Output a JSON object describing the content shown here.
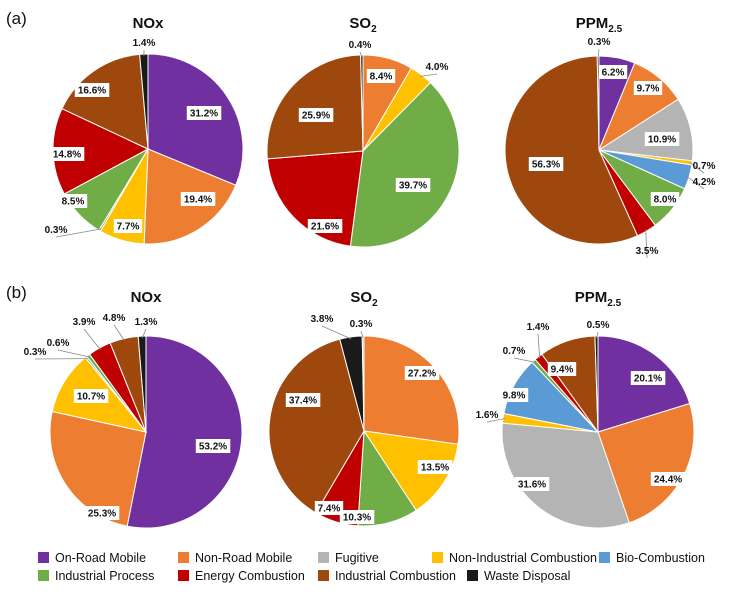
{
  "categories": [
    {
      "name": "On-Road Mobile",
      "color": "#7030A0"
    },
    {
      "name": "Non-Road Mobile",
      "color": "#ED7D31"
    },
    {
      "name": "Fugitive",
      "color": "#B4B4B4"
    },
    {
      "name": "Non-Industrial Combustion",
      "color": "#FFC000"
    },
    {
      "name": "Bio-Combustion",
      "color": "#5B9BD5"
    },
    {
      "name": "Industrial Process",
      "color": "#70AD47"
    },
    {
      "name": "Energy Combustion",
      "color": "#C00000"
    },
    {
      "name": "Industrial Combustion",
      "color": "#9E480E"
    },
    {
      "name": "Waste Disposal",
      "color": "#1A1A1A"
    }
  ],
  "chart_data": [
    {
      "type": "pie",
      "panel": "(a)",
      "title": "NOx",
      "title_base": "NOx",
      "title_sub": "",
      "slices": [
        {
          "category": "On-Road Mobile",
          "value": 31.2,
          "label": "31.2%"
        },
        {
          "category": "Non-Road Mobile",
          "value": 19.4,
          "label": "19.4%"
        },
        {
          "category": "Non-Industrial Combustion",
          "value": 7.7,
          "label": "7.7%"
        },
        {
          "category": "Industrial Process",
          "value": 0.3,
          "label": "0.3%"
        },
        {
          "category": "Industrial Process",
          "value": 8.5,
          "label": "8.5%"
        },
        {
          "category": "Energy Combustion",
          "value": 14.8,
          "label": "14.8%"
        },
        {
          "category": "Industrial Combustion",
          "value": 16.6,
          "label": "16.6%"
        },
        {
          "category": "Waste Disposal",
          "value": 1.4,
          "label": "1.4%"
        }
      ]
    },
    {
      "type": "pie",
      "panel": "(a)",
      "title": "SO2",
      "title_base": "SO",
      "title_sub": "2",
      "slices": [
        {
          "category": "Non-Road Mobile",
          "value": 8.4,
          "label": "8.4%"
        },
        {
          "category": "Non-Industrial Combustion",
          "value": 4.0,
          "label": "4.0%"
        },
        {
          "category": "Industrial Process",
          "value": 39.7,
          "label": "39.7%"
        },
        {
          "category": "Energy Combustion",
          "value": 21.6,
          "label": "21.6%"
        },
        {
          "category": "Industrial Combustion",
          "value": 25.9,
          "label": "25.9%"
        },
        {
          "category": "Waste Disposal",
          "value": 0.4,
          "label": "0.4%"
        }
      ]
    },
    {
      "type": "pie",
      "panel": "(a)",
      "title": "PPM2.5",
      "title_base": "PPM",
      "title_sub": "2.5",
      "slices": [
        {
          "category": "On-Road Mobile",
          "value": 6.2,
          "label": "6.2%"
        },
        {
          "category": "Non-Road Mobile",
          "value": 9.7,
          "label": "9.7%"
        },
        {
          "category": "Fugitive",
          "value": 10.9,
          "label": "10.9%"
        },
        {
          "category": "Non-Industrial Combustion",
          "value": 0.7,
          "label": "0.7%"
        },
        {
          "category": "Bio-Combustion",
          "value": 4.2,
          "label": "4.2%"
        },
        {
          "category": "Industrial Process",
          "value": 8.0,
          "label": "8.0%"
        },
        {
          "category": "Energy Combustion",
          "value": 3.5,
          "label": "3.5%"
        },
        {
          "category": "Industrial Combustion",
          "value": 56.3,
          "label": "56.3%"
        },
        {
          "category": "Waste Disposal",
          "value": 0.3,
          "label": "0.3%"
        }
      ]
    },
    {
      "type": "pie",
      "panel": "(b)",
      "title": "NOx",
      "title_base": "NOx",
      "title_sub": "",
      "slices": [
        {
          "category": "On-Road Mobile",
          "value": 53.2,
          "label": "53.2%"
        },
        {
          "category": "Non-Road Mobile",
          "value": 25.3,
          "label": "25.3%"
        },
        {
          "category": "Non-Industrial Combustion",
          "value": 10.7,
          "label": "10.7%"
        },
        {
          "category": "Bio-Combustion",
          "value": 0.3,
          "label": "0.3%"
        },
        {
          "category": "Industrial Process",
          "value": 0.6,
          "label": "0.6%"
        },
        {
          "category": "Energy Combustion",
          "value": 3.9,
          "label": "3.9%"
        },
        {
          "category": "Industrial Combustion",
          "value": 4.8,
          "label": "4.8%"
        },
        {
          "category": "Waste Disposal",
          "value": 1.3,
          "label": "1.3%"
        }
      ]
    },
    {
      "type": "pie",
      "panel": "(b)",
      "title": "SO2",
      "title_base": "SO",
      "title_sub": "2",
      "slices": [
        {
          "category": "Non-Road Mobile",
          "value": 27.2,
          "label": "27.2%"
        },
        {
          "category": "Non-Industrial Combustion",
          "value": 13.5,
          "label": "13.5%"
        },
        {
          "category": "Industrial Process",
          "value": 10.3,
          "label": "10.3%"
        },
        {
          "category": "Energy Combustion",
          "value": 7.4,
          "label": "7.4%"
        },
        {
          "category": "Industrial Combustion",
          "value": 37.4,
          "label": "37.4%"
        },
        {
          "category": "Waste Disposal",
          "value": 3.8,
          "label": "3.8%"
        },
        {
          "category": "Fugitive",
          "value": 0.3,
          "label": "0.3%"
        }
      ]
    },
    {
      "type": "pie",
      "panel": "(b)",
      "title": "PPM2.5",
      "title_base": "PPM",
      "title_sub": "2.5",
      "slices": [
        {
          "category": "On-Road Mobile",
          "value": 20.1,
          "label": "20.1%"
        },
        {
          "category": "Non-Road Mobile",
          "value": 24.4,
          "label": "24.4%"
        },
        {
          "category": "Fugitive",
          "value": 31.6,
          "label": "31.6%"
        },
        {
          "category": "Non-Industrial Combustion",
          "value": 1.6,
          "label": "1.6%"
        },
        {
          "category": "Bio-Combustion",
          "value": 9.8,
          "label": "9.8%"
        },
        {
          "category": "Industrial Process",
          "value": 0.7,
          "label": "0.7%"
        },
        {
          "category": "Energy Combustion",
          "value": 1.4,
          "label": "1.4%"
        },
        {
          "category": "Industrial Combustion",
          "value": 9.4,
          "label": "9.4%"
        },
        {
          "category": "Waste Disposal",
          "value": 0.5,
          "label": "0.5%"
        }
      ]
    }
  ]
}
